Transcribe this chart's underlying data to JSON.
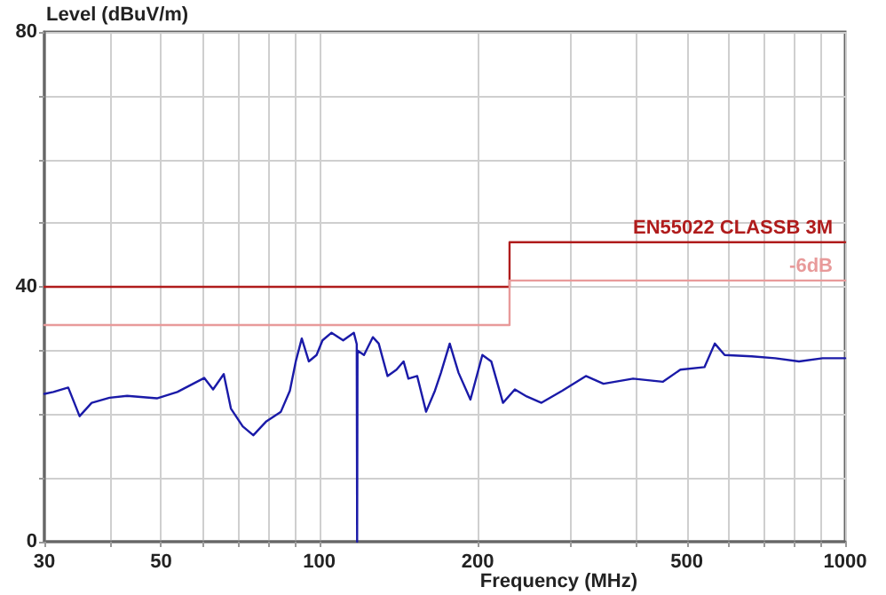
{
  "chart_data": {
    "type": "line",
    "xlabel": "Frequency (MHz)",
    "ylabel": "Level (dBuV/m)",
    "log": "x",
    "grid": true,
    "line_style": "solid",
    "xlim": [
      30,
      1000
    ],
    "ylim": [
      0,
      80
    ],
    "xticks": [
      30,
      {
        "value": 40,
        "label": null
      },
      50,
      {
        "value": 60,
        "label": null
      },
      {
        "value": 70,
        "label": null
      },
      {
        "value": 80,
        "label": null
      },
      {
        "value": 90,
        "label": null
      },
      100,
      200,
      {
        "value": 300,
        "label": null
      },
      {
        "value": 400,
        "label": null
      },
      500,
      {
        "value": 600,
        "label": null
      },
      {
        "value": 700,
        "label": null
      },
      {
        "value": 800,
        "label": null
      },
      {
        "value": 900,
        "label": null
      },
      1000
    ],
    "yticks": [
      0,
      {
        "value": 10,
        "label": null
      },
      {
        "value": 20,
        "label": null
      },
      {
        "value": 30,
        "label": null
      },
      40,
      {
        "value": 50,
        "label": null
      },
      {
        "value": 60,
        "label": null
      },
      {
        "value": 70,
        "label": null
      },
      80
    ],
    "series": [
      {
        "color": "#1a1aa8",
        "x": [
          30,
          31.2,
          33.3,
          34.2,
          35,
          36.9,
          39.9,
          43.1,
          49.1,
          53.7,
          60.4,
          62.8,
          65.8,
          67.9,
          71.5,
          74.9,
          79.3,
          84.5,
          87.9,
          90.2,
          92.6,
          95.5,
          98.8,
          101.4,
          105.5,
          111,
          116.3,
          117.8,
          118,
          118.2,
          121.6,
          126.4,
          129.7,
          134.8,
          140.2,
          144.6,
          147.7,
          153.5,
          159.6,
          165.9,
          170.3,
          177,
          184,
          193.8,
          204.2,
          212.3,
          223.5,
          235.4,
          248,
          264.5,
          289.7,
          321.3,
          347,
          395,
          449.8,
          486,
          540,
          565,
          590,
          664,
          736,
          817,
          906,
          1000
        ],
        "values": [
          23.2,
          23.5,
          24.2,
          21.8,
          19.7,
          21.8,
          22.6,
          22.9,
          22.5,
          23.5,
          25.7,
          23.9,
          26.3,
          20.9,
          18.1,
          16.7,
          18.9,
          20.4,
          23.7,
          28.3,
          31.9,
          28.3,
          29.3,
          31.6,
          32.8,
          31.6,
          32.8,
          31,
          0,
          30,
          29.3,
          32.1,
          31.1,
          26,
          27,
          28.3,
          25.6,
          26,
          20.4,
          23.7,
          26.5,
          31.1,
          26.5,
          22.3,
          29.3,
          28.3,
          21.8,
          23.9,
          22.8,
          21.8,
          23.7,
          26,
          24.8,
          25.6,
          25.1,
          27,
          27.4,
          31.1,
          29.3,
          29.1,
          28.8,
          28.3,
          28.8,
          28.8
        ]
      },
      {
        "name": "EN55022 CLASSB 3M",
        "color": "#b01c1c",
        "x": [
          30,
          230,
          230,
          1000
        ],
        "values": [
          40,
          40,
          47,
          47
        ]
      },
      {
        "name": "-6dB",
        "color": "#e89a9a",
        "x": [
          30,
          230,
          230,
          1000
        ],
        "values": [
          34,
          34,
          41,
          41
        ]
      }
    ]
  }
}
